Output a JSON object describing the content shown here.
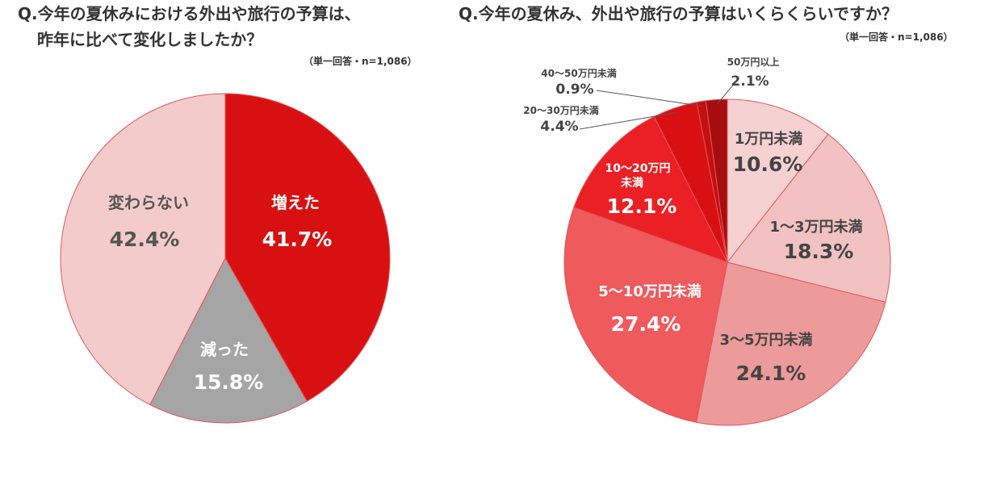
{
  "chart_data": [
    {
      "type": "pie",
      "title_line1": "Q.今年の夏休みにおける外出や旅行の予算は、",
      "title_line2": "昨年に比べて変化しましたか？",
      "note": "（単一回答・n=1,086）",
      "slices": [
        {
          "label": "増えた",
          "value": 41.7,
          "display": "41.7%",
          "color": "#d91011"
        },
        {
          "label": "減った",
          "value": 15.8,
          "display": "15.8%",
          "color": "#a5a5a5"
        },
        {
          "label": "変わらない",
          "value": 42.4,
          "display": "42.4%",
          "color": "#f4cbcb"
        }
      ]
    },
    {
      "type": "pie",
      "title": "Q.今年の夏休み、外出や旅行の予算はいくらくらいですか？",
      "note": "（単一回答・n=1,086）",
      "slices": [
        {
          "label": "1万円未満",
          "value": 10.6,
          "display": "10.6%",
          "color": "#f6d1d1"
        },
        {
          "label": "1〜3万円未満",
          "value": 18.3,
          "display": "18.3%",
          "color": "#f2c1c1"
        },
        {
          "label": "3〜5万円未満",
          "value": 24.1,
          "display": "24.1%",
          "color": "#ed9a9b"
        },
        {
          "label": "5〜10万円未満",
          "value": 27.4,
          "display": "27.4%",
          "color": "#ef5a5d"
        },
        {
          "label": "10〜20万円",
          "label2": "未満",
          "value": 12.1,
          "display": "12.1%",
          "color": "#ea2025"
        },
        {
          "label": "20〜30万円未満",
          "value": 4.4,
          "display": "4.4%",
          "color": "#d91012"
        },
        {
          "label": "40〜50万円未満",
          "value": 0.9,
          "display": "0.9%",
          "color": "#c40e10"
        },
        {
          "label": "50万円以上",
          "value": 2.1,
          "display": "2.1%",
          "color": "#a50d0f"
        }
      ]
    }
  ]
}
